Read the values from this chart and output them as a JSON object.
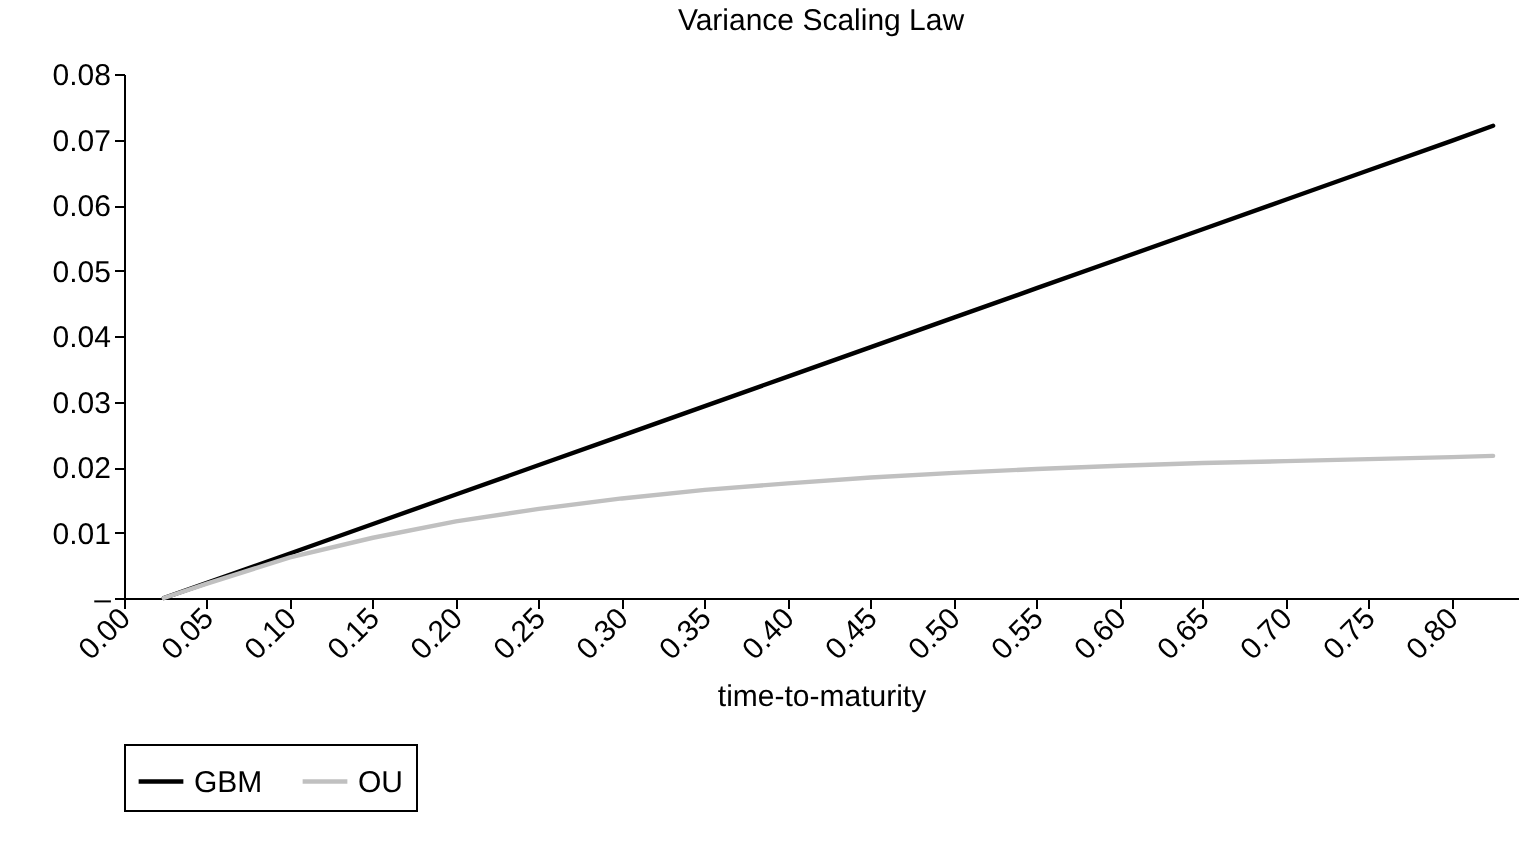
{
  "chart_data": {
    "type": "line",
    "title": "Variance Scaling Law",
    "xlabel": "time-to-maturity",
    "x": [
      0.024,
      0.05,
      0.1,
      0.15,
      0.2,
      0.25,
      0.3,
      0.35,
      0.4,
      0.45,
      0.5,
      0.55,
      0.6,
      0.65,
      0.7,
      0.75,
      0.8,
      0.825
    ],
    "series": [
      {
        "name": "GBM",
        "color": "#000000",
        "values": [
          0,
          0.0023,
          0.0068,
          0.0113,
          0.0158,
          0.0203,
          0.0248,
          0.0293,
          0.0338,
          0.0383,
          0.0428,
          0.0473,
          0.0518,
          0.0563,
          0.0608,
          0.0653,
          0.0698,
          0.0721
        ]
      },
      {
        "name": "OU",
        "color": "#c0c0c0",
        "values": [
          0,
          0.0022,
          0.0062,
          0.0092,
          0.0117,
          0.0136,
          0.0152,
          0.0165,
          0.0175,
          0.0184,
          0.0191,
          0.0197,
          0.0202,
          0.0206,
          0.0209,
          0.0212,
          0.0215,
          0.0217
        ]
      }
    ],
    "xlim": [
      0,
      0.84
    ],
    "xticks": [
      {
        "value": 0,
        "label": "0.00"
      },
      0.05,
      {
        "value": 0.1,
        "label": "0.10"
      },
      0.15,
      {
        "value": 0.2,
        "label": "0.20"
      },
      0.25,
      {
        "value": 0.3,
        "label": "0.30"
      },
      0.35,
      {
        "value": 0.4,
        "label": "0.40"
      },
      0.45,
      {
        "value": 0.5,
        "label": "0.50"
      },
      0.55,
      {
        "value": 0.6,
        "label": "0.60"
      },
      0.65,
      {
        "value": 0.7,
        "label": "0.70"
      },
      0.75,
      {
        "value": 0.8,
        "label": "0.80"
      }
    ],
    "ylim": [
      0,
      0.08
    ],
    "yticks": [
      {
        "value": 0,
        "label": "–"
      },
      0.01,
      0.02,
      0.03,
      0.04,
      0.05,
      0.06,
      0.07,
      0.08
    ],
    "legend": "bottom",
    "line_style": "solid"
  }
}
